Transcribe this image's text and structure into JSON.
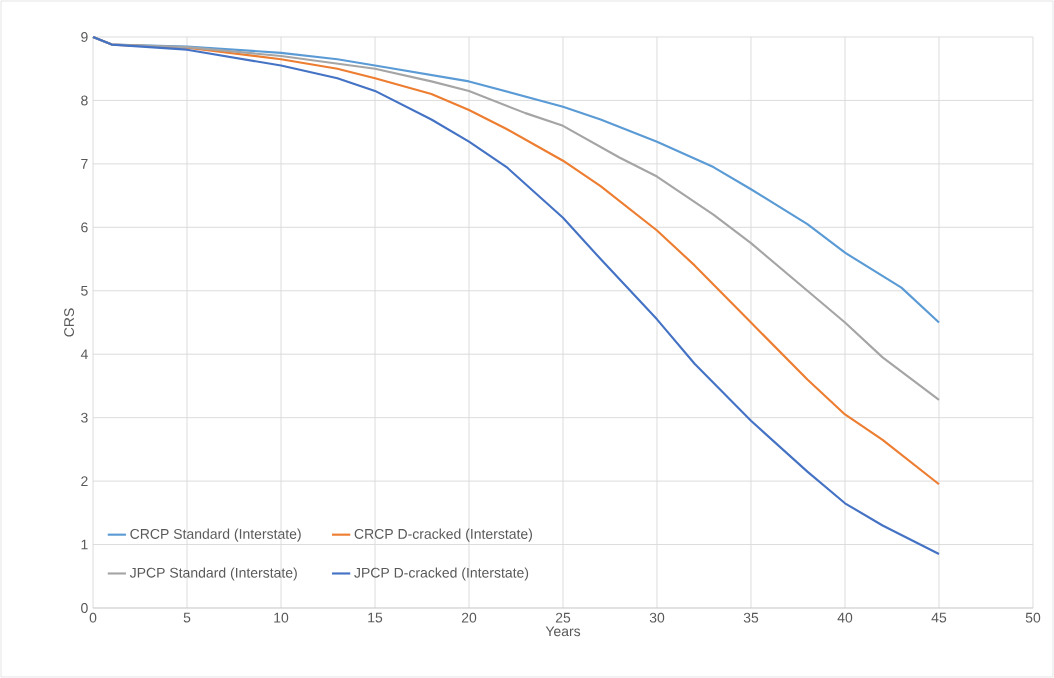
{
  "chart_data": {
    "type": "line",
    "xlabel": "Years",
    "ylabel": "CRS",
    "xlim": [
      0,
      50
    ],
    "xticks": [
      0,
      5,
      10,
      15,
      20,
      25,
      30,
      35,
      40,
      45,
      50
    ],
    "ylim": [
      0,
      9
    ],
    "yticks": [
      0,
      1,
      2,
      3,
      4,
      5,
      6,
      7,
      8,
      9
    ],
    "grid": true,
    "legend": "bottom left",
    "marker": "none",
    "line_style": "solid",
    "series": [
      {
        "name": "CRCP Standard (Interstate)",
        "color": "#5b9bd5",
        "x": [
          0,
          1,
          5,
          10,
          13,
          15,
          20,
          25,
          27,
          30,
          33,
          35,
          38,
          40,
          43,
          45
        ],
        "values": [
          9,
          8.88,
          8.85,
          8.75,
          8.65,
          8.55,
          8.3,
          7.9,
          7.7,
          7.35,
          6.95,
          6.6,
          6.05,
          5.6,
          5.05,
          4.5
        ]
      },
      {
        "name": "CRCP D-cracked (Interstate)",
        "color": "#ed7d31",
        "x": [
          0,
          1,
          5,
          10,
          13,
          15,
          18,
          20,
          22,
          25,
          27,
          30,
          32,
          35,
          38,
          40,
          42,
          45
        ],
        "values": [
          9,
          8.88,
          8.83,
          8.65,
          8.5,
          8.35,
          8.1,
          7.85,
          7.55,
          7.05,
          6.65,
          5.95,
          5.4,
          4.5,
          3.6,
          3.05,
          2.65,
          1.95
        ]
      },
      {
        "name": "JPCP Standard (Interstate)",
        "color": "#a5a5a5",
        "x": [
          0,
          1,
          5,
          10,
          15,
          18,
          20,
          23,
          25,
          28,
          30,
          33,
          35,
          38,
          40,
          42,
          45
        ],
        "values": [
          9,
          8.88,
          8.84,
          8.7,
          8.5,
          8.3,
          8.15,
          7.8,
          7.6,
          7.1,
          6.8,
          6.2,
          5.75,
          5.0,
          4.5,
          3.95,
          3.28
        ]
      },
      {
        "name": "JPCP D-cracked (Interstate)",
        "color": "#4472c4",
        "x": [
          0,
          1,
          5,
          10,
          13,
          15,
          18,
          20,
          22,
          25,
          27,
          30,
          32,
          35,
          38,
          40,
          42,
          45
        ],
        "values": [
          9,
          8.88,
          8.8,
          8.55,
          8.35,
          8.15,
          7.7,
          7.35,
          6.95,
          6.15,
          5.5,
          4.55,
          3.85,
          2.95,
          2.15,
          1.65,
          1.3,
          0.85
        ]
      }
    ]
  }
}
